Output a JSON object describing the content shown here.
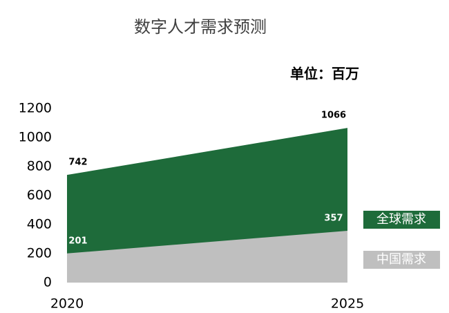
{
  "chart_data": {
    "type": "area",
    "title": "数字人才需求预测",
    "subtitle": "单位：百万",
    "categories": [
      "2020",
      "2025"
    ],
    "series": [
      {
        "name": "全球需求",
        "color": "#1e6b3a",
        "values": [
          742,
          1066
        ]
      },
      {
        "name": "中国需求",
        "color": "#bfbfbf",
        "values": [
          201,
          357
        ]
      }
    ],
    "ylim": [
      0,
      1200
    ],
    "yticks": [
      0,
      200,
      400,
      600,
      800,
      1000,
      1200
    ],
    "grid": false,
    "legend": "right"
  }
}
